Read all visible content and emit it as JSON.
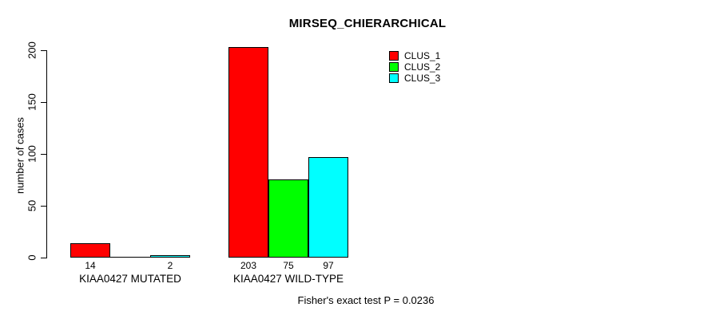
{
  "title": "MIRSEQ_CHIERARCHICAL",
  "chart_data": {
    "type": "bar",
    "barmode": "grouped",
    "title": "MIRSEQ_CHIERARCHICAL",
    "xlabel": "",
    "ylabel": "number of cases",
    "ylim": [
      0,
      200
    ],
    "yticks": [
      0,
      50,
      100,
      150,
      200
    ],
    "grid": false,
    "legend_position": "top-right-inside",
    "categories": [
      "KIAA0427 MUTATED",
      "KIAA0427 WILD-TYPE"
    ],
    "series": [
      {
        "name": "CLUS_1",
        "color": "#ff0000",
        "values": [
          14,
          203
        ]
      },
      {
        "name": "CLUS_2",
        "color": "#00ff00",
        "values": [
          0,
          75
        ]
      },
      {
        "name": "CLUS_3",
        "color": "#00ffff",
        "values": [
          2,
          97
        ]
      }
    ],
    "bar_labels": [
      [
        "14",
        "",
        "2"
      ],
      [
        "203",
        "75",
        "97"
      ]
    ],
    "annotation": "Fisher's exact test P = 0.0236"
  },
  "colors": {
    "background": "#ffffff",
    "axis": "#000000",
    "text": "#000000"
  }
}
